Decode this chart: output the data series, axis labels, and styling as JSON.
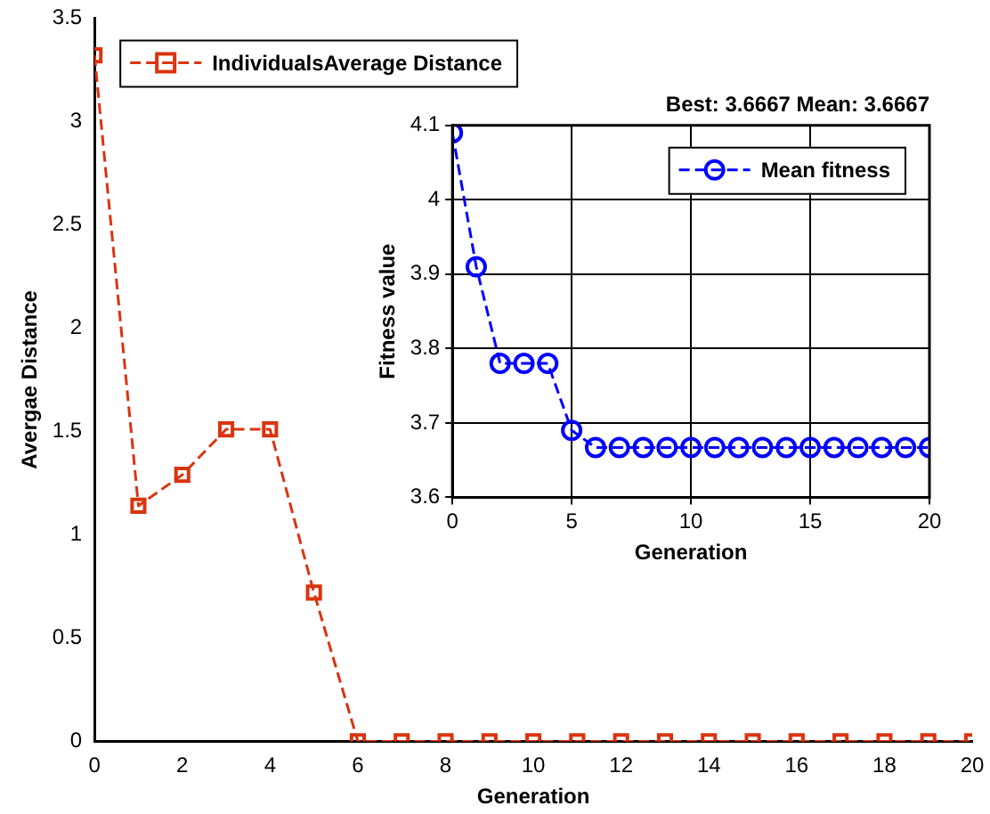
{
  "chart_data": [
    {
      "type": "line",
      "xlabel": "Generation",
      "ylabel": "Avergae Distance",
      "x": [
        0,
        1,
        2,
        3,
        4,
        5,
        6,
        7,
        8,
        9,
        10,
        11,
        12,
        13,
        14,
        15,
        16,
        17,
        18,
        19,
        20
      ],
      "series": [
        {
          "name": "IndividualsAverage Distance",
          "color": "#d9340f",
          "values": [
            3.32,
            1.14,
            1.29,
            1.51,
            1.51,
            0.72,
            0,
            0,
            0,
            0,
            0,
            0,
            0,
            0,
            0,
            0,
            0,
            0,
            0,
            0,
            0
          ]
        }
      ],
      "xlim": [
        0,
        20
      ],
      "xticks": [
        0,
        2,
        4,
        6,
        8,
        10,
        12,
        14,
        16,
        18,
        20
      ],
      "ylim": [
        0,
        3.5
      ],
      "yticks": [
        0,
        0.5,
        1,
        1.5,
        2,
        2.5,
        3,
        3.5
      ],
      "grid": false,
      "legend": "top left",
      "marker": "square",
      "line_style": "dashed"
    },
    {
      "type": "line",
      "title": "Best: 3.6667 Mean: 3.6667",
      "xlabel": "Generation",
      "ylabel": "Fitness value",
      "x": [
        0,
        1,
        2,
        3,
        4,
        5,
        6,
        7,
        8,
        9,
        10,
        11,
        12,
        13,
        14,
        15,
        16,
        17,
        18,
        19,
        20
      ],
      "series": [
        {
          "name": "Mean fitness",
          "color": "#0000ff",
          "values": [
            4.09,
            3.91,
            3.78,
            3.78,
            3.78,
            3.69,
            3.667,
            3.667,
            3.667,
            3.667,
            3.667,
            3.667,
            3.667,
            3.667,
            3.667,
            3.667,
            3.667,
            3.667,
            3.667,
            3.667,
            3.667
          ]
        }
      ],
      "xlim": [
        0,
        20
      ],
      "xticks": [
        0,
        5,
        10,
        15,
        20
      ],
      "ylim": [
        3.6,
        4.1
      ],
      "yticks": [
        3.6,
        3.7,
        3.8,
        3.9,
        4,
        4.1
      ],
      "grid": true,
      "legend": "top right",
      "marker": "circle",
      "line_style": "dashed"
    }
  ]
}
